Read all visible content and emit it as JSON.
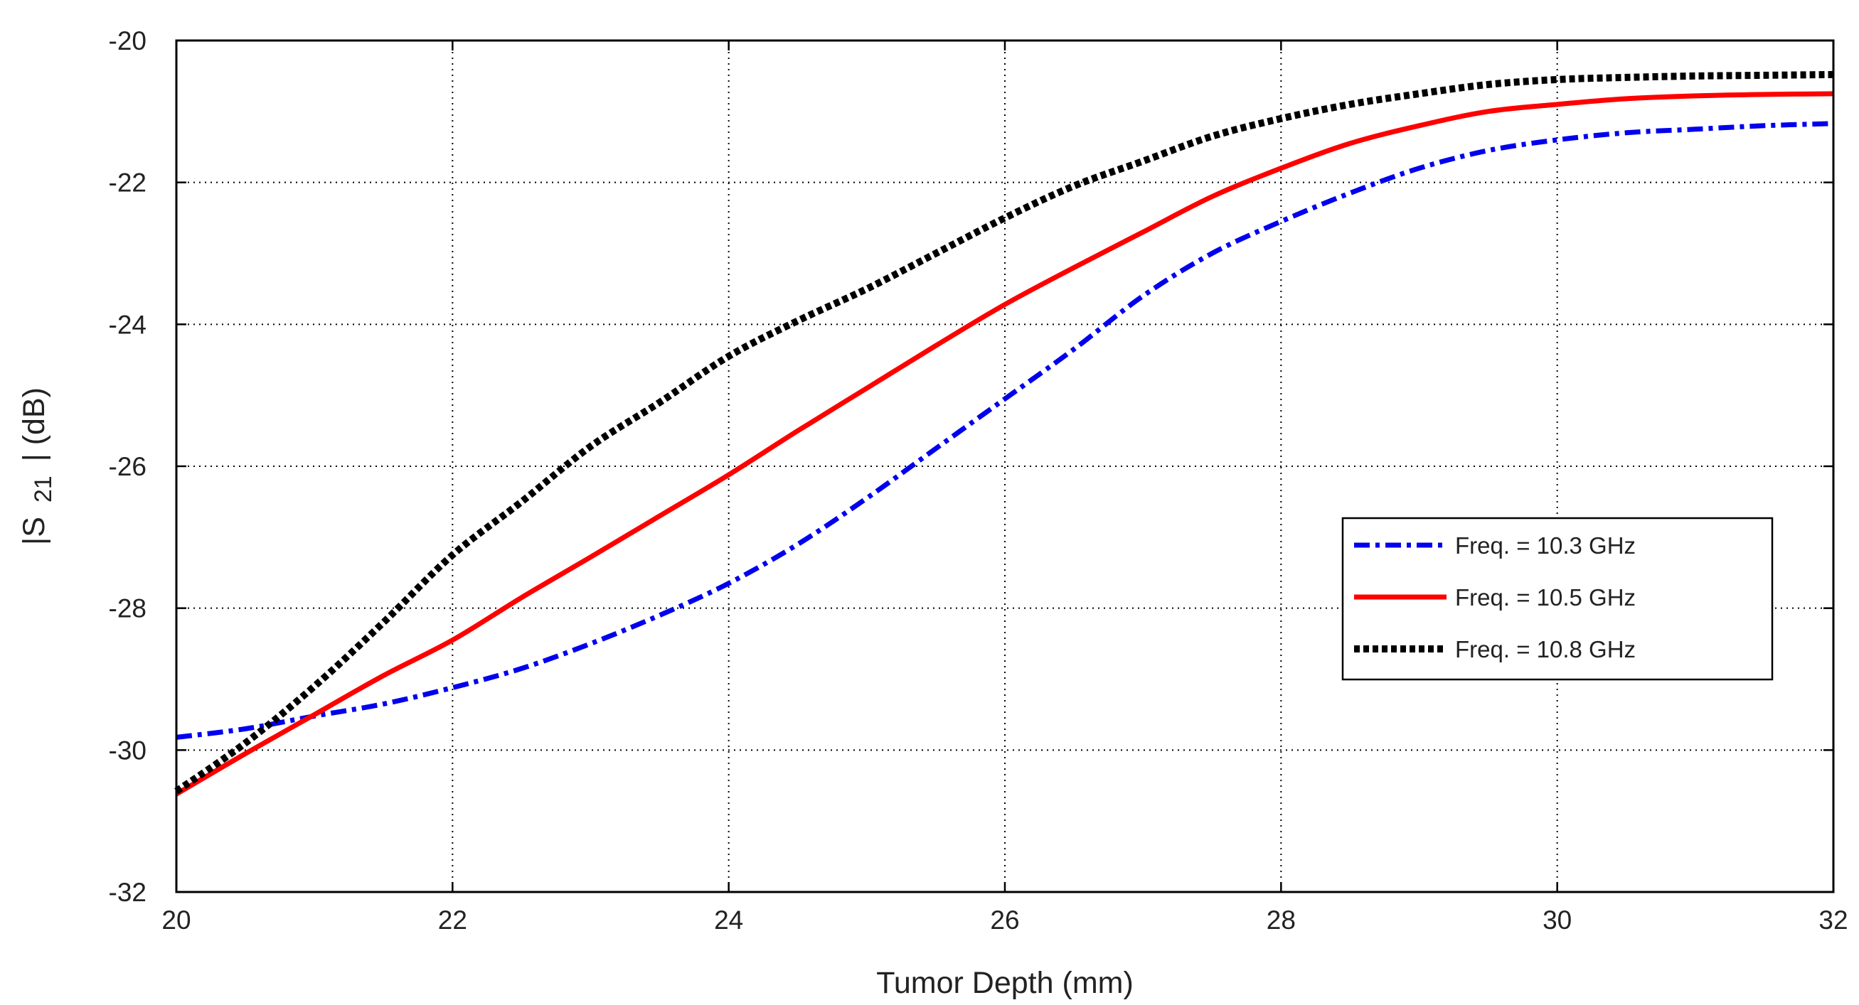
{
  "chart_data": {
    "type": "line",
    "title": "",
    "xlabel": "Tumor Depth (mm)",
    "ylabel": {
      "prefix": "|S",
      "subscript": "21",
      "suffix": "| (dB)"
    },
    "xlim": [
      20,
      32
    ],
    "ylim": [
      -32,
      -20
    ],
    "xticks": [
      20,
      22,
      24,
      26,
      28,
      30,
      32
    ],
    "yticks": [
      -20,
      -22,
      -24,
      -26,
      -28,
      -30,
      -32
    ],
    "grid": true,
    "legend_position": "right-middle",
    "x": [
      20,
      20.5,
      21,
      21.5,
      22,
      22.5,
      23,
      23.5,
      24,
      24.5,
      25,
      25.5,
      26,
      26.5,
      27,
      27.5,
      28,
      28.5,
      29,
      29.5,
      30,
      30.5,
      31,
      31.5,
      32
    ],
    "series": [
      {
        "name": "Freq. = 10.3 GHz",
        "color": "#0000ee",
        "style": "dash-dot",
        "values": [
          -29.82,
          -29.7,
          -29.52,
          -29.35,
          -29.12,
          -28.85,
          -28.5,
          -28.1,
          -27.65,
          -27.1,
          -26.45,
          -25.75,
          -25.05,
          -24.35,
          -23.6,
          -23.0,
          -22.55,
          -22.15,
          -21.8,
          -21.55,
          -21.4,
          -21.3,
          -21.25,
          -21.2,
          -21.17
        ]
      },
      {
        "name": "Freq. = 10.5 GHz",
        "color": "#ff0000",
        "style": "solid",
        "values": [
          -30.62,
          -30.05,
          -29.5,
          -28.95,
          -28.45,
          -27.85,
          -27.28,
          -26.7,
          -26.12,
          -25.5,
          -24.9,
          -24.3,
          -23.72,
          -23.2,
          -22.7,
          -22.2,
          -21.8,
          -21.45,
          -21.2,
          -21.0,
          -20.9,
          -20.82,
          -20.78,
          -20.76,
          -20.75
        ]
      },
      {
        "name": "Freq. = 10.8 GHz",
        "color": "#000000",
        "style": "dotted",
        "values": [
          -30.58,
          -29.9,
          -29.1,
          -28.2,
          -27.25,
          -26.5,
          -25.72,
          -25.1,
          -24.45,
          -23.95,
          -23.5,
          -23.0,
          -22.5,
          -22.05,
          -21.7,
          -21.35,
          -21.1,
          -20.9,
          -20.75,
          -20.62,
          -20.55,
          -20.52,
          -20.5,
          -20.49,
          -20.48
        ]
      }
    ]
  }
}
